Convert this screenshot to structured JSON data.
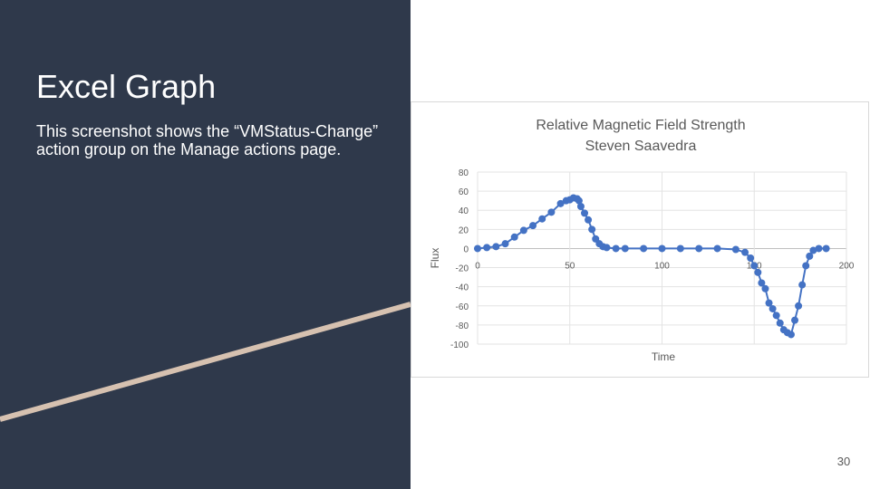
{
  "slide": {
    "title": "Excel Graph",
    "body": "This screenshot shows the “VMStatus-Change” action group on the Manage actions page.",
    "page_number": "30",
    "colors": {
      "panel": "#2f394b",
      "accent_line": "#d6c1b0",
      "series": "#4472c4"
    }
  },
  "chart_data": {
    "type": "scatter",
    "title": "Relative Magnetic Field Strength",
    "subtitle": "Steven Saavedra",
    "xlabel": "Time",
    "ylabel": "Flux",
    "xlim": [
      0,
      200
    ],
    "ylim": [
      -100,
      80
    ],
    "xticks": [
      "0",
      "50",
      "100",
      "150",
      "200"
    ],
    "yticks": [
      "80",
      "60",
      "40",
      "20",
      "0",
      "-20",
      "-40",
      "-60",
      "-80",
      "-100"
    ],
    "grid": true,
    "legend": "none",
    "series": [
      {
        "x": [
          0,
          5,
          10,
          15,
          20,
          25,
          30,
          35,
          40,
          45,
          48,
          50,
          52,
          54,
          55,
          56,
          58,
          60,
          62,
          64,
          66,
          68,
          70,
          75,
          80,
          90,
          100,
          110,
          120,
          130,
          140,
          145,
          148,
          150,
          152,
          154,
          156,
          158,
          160,
          162,
          164,
          166,
          168,
          170,
          172,
          174,
          176,
          178,
          180,
          182,
          185,
          189
        ],
        "y": [
          0,
          1,
          2,
          5,
          12,
          19,
          24,
          31,
          38,
          47,
          50,
          51,
          53,
          52,
          50,
          44,
          37,
          30,
          20,
          10,
          5,
          2,
          1,
          0,
          0,
          0,
          0,
          0,
          0,
          0,
          -1,
          -4,
          -10,
          -18,
          -25,
          -36,
          -42,
          -57,
          -63,
          -70,
          -78,
          -85,
          -88,
          -90,
          -75,
          -60,
          -38,
          -18,
          -8,
          -2,
          0,
          0
        ]
      }
    ]
  }
}
